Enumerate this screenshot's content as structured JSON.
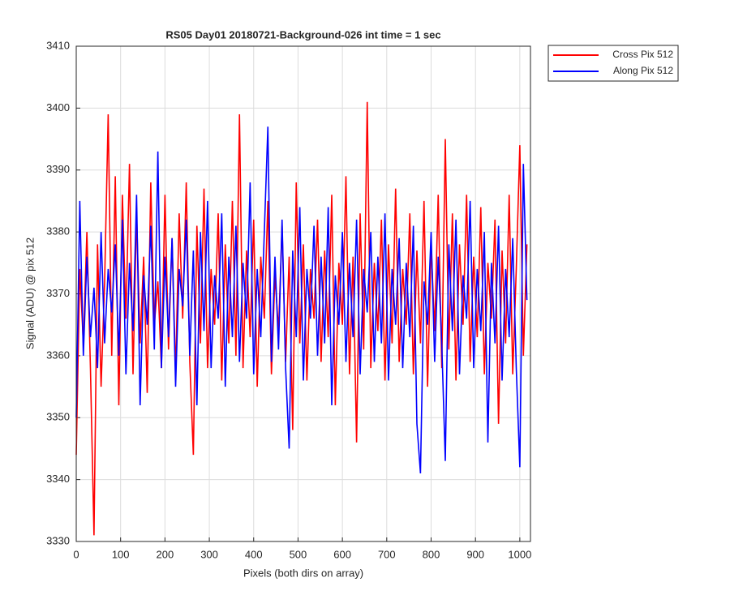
{
  "chart_data": {
    "type": "line",
    "title": "RS05 Day01 20180721-Background-026 int time = 1 sec",
    "x_label": "Pixels (both dirs on array)",
    "y_label": "Signal (ADU) @ pix 512",
    "x": [
      0,
      8,
      16,
      24,
      32,
      40,
      48,
      56,
      64,
      72,
      80,
      88,
      96,
      104,
      112,
      120,
      128,
      136,
      144,
      152,
      160,
      168,
      176,
      184,
      192,
      200,
      208,
      216,
      224,
      232,
      240,
      248,
      256,
      264,
      272,
      280,
      288,
      296,
      304,
      312,
      320,
      328,
      336,
      344,
      352,
      360,
      368,
      376,
      384,
      392,
      400,
      408,
      416,
      424,
      432,
      440,
      448,
      456,
      464,
      472,
      480,
      488,
      496,
      504,
      512,
      520,
      528,
      536,
      544,
      552,
      560,
      568,
      576,
      584,
      592,
      600,
      608,
      616,
      624,
      632,
      640,
      648,
      656,
      664,
      672,
      680,
      688,
      696,
      704,
      712,
      720,
      728,
      736,
      744,
      752,
      760,
      768,
      776,
      784,
      792,
      800,
      808,
      816,
      824,
      832,
      840,
      848,
      856,
      864,
      872,
      880,
      888,
      896,
      904,
      912,
      920,
      928,
      936,
      944,
      952,
      960,
      968,
      976,
      984,
      992,
      1000,
      1008,
      1016
    ],
    "series": [
      {
        "name": "Cross Pix 512",
        "color": "#ff0000",
        "values": [
          3344,
          3374,
          3362,
          3380,
          3358,
          3331,
          3378,
          3355,
          3372,
          3399,
          3360,
          3389,
          3352,
          3386,
          3366,
          3391,
          3357,
          3383,
          3362,
          3376,
          3354,
          3388,
          3365,
          3372,
          3358,
          3386,
          3361,
          3379,
          3357,
          3383,
          3366,
          3388,
          3359,
          3344,
          3381,
          3362,
          3387,
          3358,
          3374,
          3365,
          3383,
          3356,
          3378,
          3362,
          3385,
          3360,
          3399,
          3358,
          3377,
          3363,
          3382,
          3355,
          3376,
          3366,
          3385,
          3357,
          3373,
          3364,
          3381,
          3359,
          3376,
          3348,
          3388,
          3362,
          3378,
          3356,
          3374,
          3366,
          3382,
          3359,
          3377,
          3363,
          3386,
          3352,
          3375,
          3365,
          3389,
          3357,
          3376,
          3346,
          3383,
          3361,
          3401,
          3358,
          3375,
          3364,
          3382,
          3356,
          3378,
          3362,
          3387,
          3359,
          3374,
          3365,
          3383,
          3357,
          3377,
          3362,
          3385,
          3355,
          3378,
          3364,
          3386,
          3358,
          3395,
          3361,
          3383,
          3356,
          3378,
          3365,
          3386,
          3359,
          3376,
          3363,
          3384,
          3357,
          3375,
          3366,
          3382,
          3349,
          3377,
          3362,
          3386,
          3357,
          3374,
          3394,
          3360,
          3378
        ]
      },
      {
        "name": "Along Pix 512",
        "color": "#0000ff",
        "values": [
          3350,
          3385,
          3360,
          3376,
          3363,
          3371,
          3358,
          3380,
          3362,
          3374,
          3367,
          3378,
          3360,
          3382,
          3357,
          3375,
          3364,
          3386,
          3352,
          3373,
          3365,
          3381,
          3361,
          3393,
          3358,
          3376,
          3363,
          3379,
          3355,
          3374,
          3368,
          3382,
          3360,
          3377,
          3352,
          3380,
          3364,
          3385,
          3358,
          3373,
          3366,
          3383,
          3355,
          3376,
          3363,
          3381,
          3359,
          3375,
          3366,
          3388,
          3357,
          3374,
          3363,
          3380,
          3397,
          3359,
          3376,
          3361,
          3382,
          3358,
          3345,
          3377,
          3363,
          3384,
          3356,
          3374,
          3366,
          3381,
          3360,
          3376,
          3362,
          3384,
          3352,
          3373,
          3365,
          3380,
          3359,
          3375,
          3363,
          3382,
          3357,
          3374,
          3367,
          3380,
          3359,
          3376,
          3362,
          3383,
          3356,
          3374,
          3365,
          3379,
          3358,
          3375,
          3363,
          3381,
          3349,
          3341,
          3372,
          3365,
          3380,
          3359,
          3376,
          3362,
          3343,
          3378,
          3364,
          3382,
          3357,
          3373,
          3366,
          3385,
          3358,
          3374,
          3364,
          3380,
          3346,
          3375,
          3362,
          3381,
          3356,
          3374,
          3363,
          3379,
          3358,
          3342,
          3391,
          3369
        ]
      }
    ],
    "xlim": [
      0,
      1024
    ],
    "xticks": [
      0,
      100,
      200,
      300,
      400,
      500,
      600,
      700,
      800,
      900,
      1000
    ],
    "ylim": [
      3330,
      3410
    ],
    "yticks": [
      3330,
      3340,
      3350,
      3360,
      3370,
      3380,
      3390,
      3400,
      3410
    ],
    "grid": true,
    "legend": "outside-right"
  }
}
